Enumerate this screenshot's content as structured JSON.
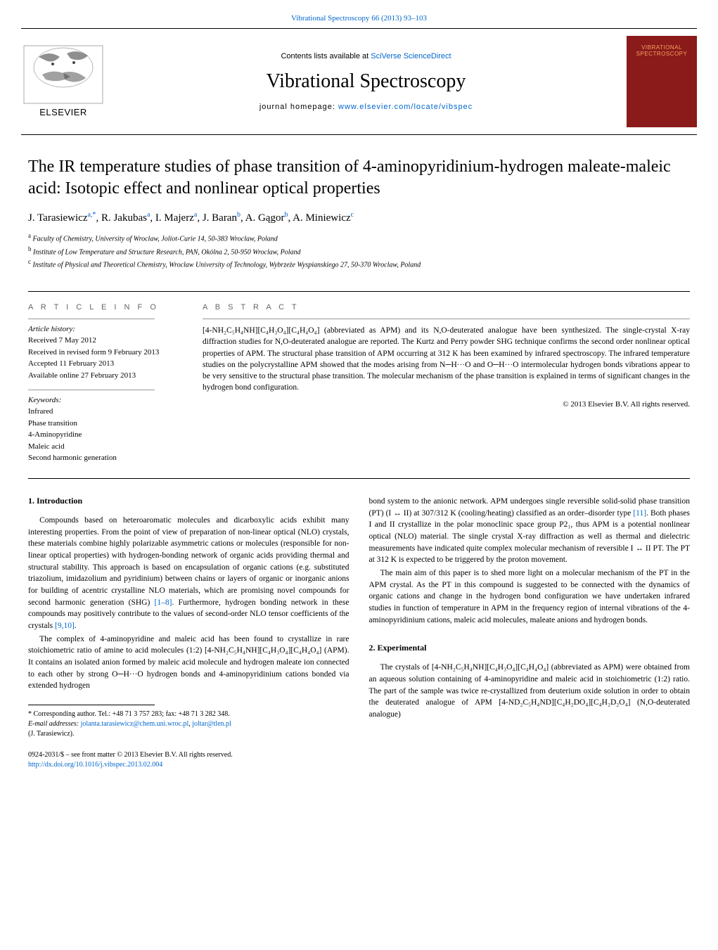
{
  "colors": {
    "link": "#0066cc",
    "text": "#000000",
    "cover_bg": "#8b1a1a",
    "cover_text": "#f4a460",
    "heading_grey": "#666666"
  },
  "top_link": {
    "journal": "Vibrational Spectroscopy",
    "citation": "66 (2013) 93–103"
  },
  "header": {
    "contents_prefix": "Contents lists available at ",
    "contents_source": "SciVerse ScienceDirect",
    "journal_name": "Vibrational Spectroscopy",
    "homepage_prefix": "journal homepage: ",
    "homepage_url": "www.elsevier.com/locate/vibspec",
    "cover_label": "VIBRATIONAL SPECTROSCOPY",
    "publisher_name": "ELSEVIER"
  },
  "title": "The IR temperature studies of phase transition of 4-aminopyridinium-hydrogen maleate-maleic acid: Isotopic effect and nonlinear optical properties",
  "authors_html": "J. Tarasiewicz<sup>a,*</sup>, R. Jakubas<sup>a</sup>, I. Majerz<sup>a</sup>, J. Baran<sup>b</sup>, A. Gągor<sup>b</sup>, A. Miniewicz<sup>c</sup>",
  "affiliations": [
    {
      "sup": "a",
      "text": "Faculty of Chemistry, University of Wroclaw, Joliot-Curie 14, 50-383 Wroclaw, Poland"
    },
    {
      "sup": "b",
      "text": "Institute of Low Temperature and Structure Research, PAN, Okólna 2, 50-950 Wroclaw, Poland"
    },
    {
      "sup": "c",
      "text": "Institute of Physical and Theoretical Chemistry, Wroclaw University of Technology, Wybrzeże Wyspianskiego 27, 50-370 Wroclaw, Poland"
    }
  ],
  "info": {
    "heading": "A R T I C L E   I N F O",
    "history_label": "Article history:",
    "history": [
      "Received 7 May 2012",
      "Received in revised form 9 February 2013",
      "Accepted 11 February 2013",
      "Available online 27 February 2013"
    ],
    "keywords_label": "Keywords:",
    "keywords": [
      "Infrared",
      "Phase transition",
      "4-Aminopyridine",
      "Maleic acid",
      "Second harmonic generation"
    ]
  },
  "abstract": {
    "heading": "A B S T R A C T",
    "text": "[4-NH₂C₅H₄NH][C₄H₃O₄][C₄H₄O₄] (abbreviated as APM) and its N,O-deuterated analogue have been synthesized. The single-crystal X-ray diffraction studies for N,O-deuterated analogue are reported. The Kurtz and Perry powder SHG technique confirms the second order nonlinear optical properties of APM. The structural phase transition of APM occurring at 312 K has been examined by infrared spectroscopy. The infrared temperature studies on the polycrystalline APM showed that the modes arising from N─H···O and O─H···O intermolecular hydrogen bonds vibrations appear to be very sensitive to the structural phase transition. The molecular mechanism of the phase transition is explained in terms of significant changes in the hydrogen bond configuration.",
    "copyright": "© 2013 Elsevier B.V. All rights reserved."
  },
  "sections": {
    "introduction_heading": "1.  Introduction",
    "intro_p1": "Compounds based on heteroaromatic molecules and dicarboxylic acids exhibit many interesting properties. From the point of view of preparation of non-linear optical (NLO) crystals, these materials combine highly polarizable asymmetric cations or molecules (responsible for non-linear optical properties) with hydrogen-bonding network of organic acids providing thermal and structural stability. This approach is based on encapsulation of organic cations (e.g. substituted triazolium, imidazolium and pyridinium) between chains or layers of organic or inorganic anions for building of acentric crystalline NLO materials, which are promising novel compounds for second harmonic generation (SHG) ",
    "intro_ref1": "[1–8]",
    "intro_p1b": ". Furthermore, hydrogen bonding network in these compounds may positively contribute to the values of second-order NLO tensor coefficients of the crystals ",
    "intro_ref2": "[9,10]",
    "intro_p1c": ".",
    "intro_p2": "The complex of 4-aminopyridine and maleic acid has been found to crystallize in rare stoichiometric ratio of amine to acid molecules (1:2) [4-NH₂C₅H₄NH][C₄H₃O₄][C₄H₄O₄] (APM). It contains an isolated anion formed by maleic acid molecule and hydrogen maleate ion connected to each other by strong O─H···O hydrogen bonds and 4-aminopyridinium cations bonded via extended hydrogen",
    "col2_p1a": "bond system to the anionic network. APM undergoes single reversible solid-solid phase transition (PT) (I ↔ II) at 307/312 K (cooling/heating) classified as an order–disorder type ",
    "col2_ref1": "[11]",
    "col2_p1b": ". Both phases I and II crystallize in the polar monoclinic space group P2₁, thus APM is a potential nonlinear optical (NLO) material. The single crystal X-ray diffraction as well as thermal and dielectric measurements have indicated quite complex molecular mechanism of reversible I ↔ II PT. The PT at 312 K is expected to be triggered by the proton movement.",
    "col2_p2": "The main aim of this paper is to shed more light on a molecular mechanism of the PT in the APM crystal. As the PT in this compound is suggested to be connected with the dynamics of organic cations and change in the hydrogen bond configuration we have undertaken infrared studies in function of temperature in APM in the frequency region of internal vibrations of the 4-aminopyridinium cations, maleic acid molecules, maleate anions and hydrogen bonds.",
    "experimental_heading": "2.  Experimental",
    "exp_p1": "The crystals of [4-NH₂C₅H₄NH][C₄H₃O₄][C₄H₄O₄] (abbreviated as APM) were obtained from an aqueous solution containing of 4-aminopyridine and maleic acid in stoichiometric (1:2) ratio. The part of the sample was twice re-crystallized from deuterium oxide solution in order to obtain the deuterated analogue of APM [4-ND₂C₅H₄ND][C₄H₂DO₄][C₄H₂D₂O₄] (N,O-deuterated analogue)"
  },
  "footnote": {
    "corresponding": "* Corresponding author. Tel.: +48 71 3 757 283; fax: +48 71 3 282 348.",
    "email_label": "E-mail addresses: ",
    "email1": "jolanta.tarasiewicz@chem.uni.wroc.pl",
    "email_sep": ", ",
    "email2": "joltar@tlen.pl",
    "name": "(J. Tarasiewicz)."
  },
  "bottom": {
    "line1": "0924-2031/$ – see front matter © 2013 Elsevier B.V. All rights reserved.",
    "doi": "http://dx.doi.org/10.1016/j.vibspec.2013.02.004"
  }
}
